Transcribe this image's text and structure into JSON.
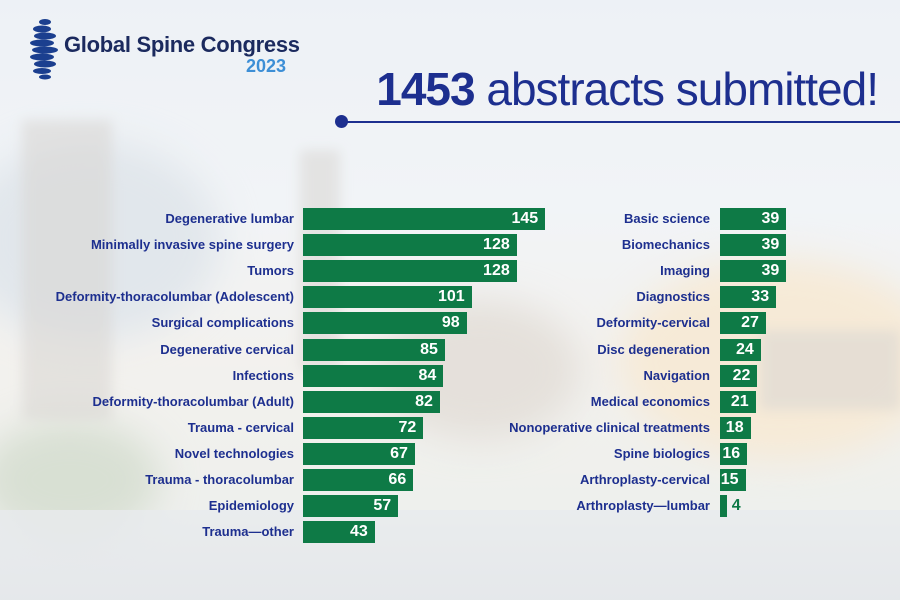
{
  "logo": {
    "name": "Global Spine Congress",
    "year": "2023"
  },
  "headline": {
    "number": "1453",
    "text": " abstracts submitted!"
  },
  "colors": {
    "bar": "#0e7a46",
    "label": "#1d2f8f",
    "headline": "#1d2f8f",
    "year": "#3d8fd6"
  },
  "chart_data": [
    {
      "type": "bar",
      "orientation": "horizontal",
      "categories": [
        "Degenerative lumbar",
        "Minimally invasive spine surgery",
        "Tumors",
        "Deformity-thoracolumbar (Adolescent)",
        "Surgical complications",
        "Degenerative cervical",
        "Infections",
        "Deformity-thoracolumbar (Adult)",
        "Trauma - cervical",
        "Novel technologies",
        "Trauma - thoracolumbar",
        "Epidemiology",
        "Trauma—other"
      ],
      "values": [
        145,
        128,
        128,
        101,
        98,
        85,
        84,
        82,
        72,
        67,
        66,
        57,
        43
      ]
    },
    {
      "type": "bar",
      "orientation": "horizontal",
      "categories": [
        "Basic science",
        "Biomechanics",
        "Imaging",
        "Diagnostics",
        "Deformity-cervical",
        "Disc degeneration",
        "Navigation",
        "Medical economics",
        "Nonoperative clinical treatments",
        "Spine biologics",
        "Arthroplasty-cervical",
        "Arthroplasty—lumbar"
      ],
      "values": [
        39,
        39,
        39,
        33,
        27,
        24,
        22,
        21,
        18,
        16,
        15,
        4
      ]
    }
  ]
}
